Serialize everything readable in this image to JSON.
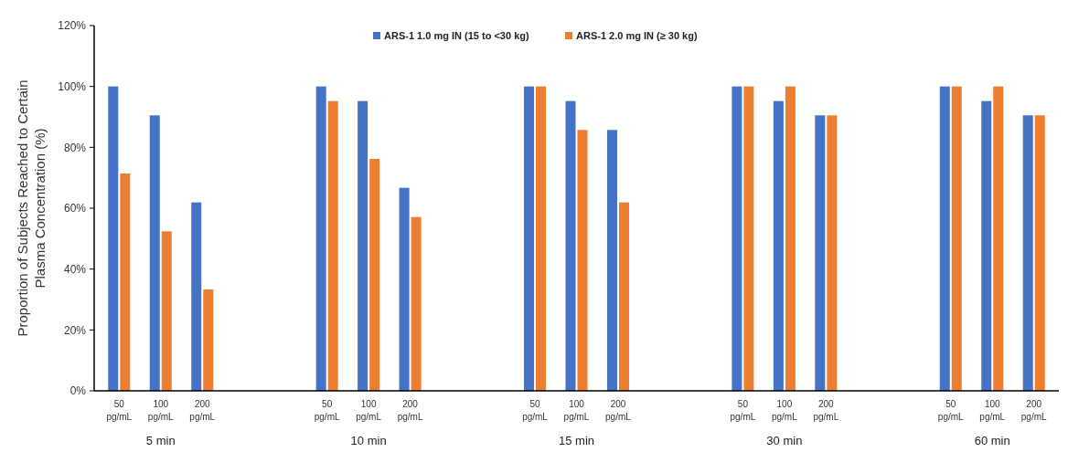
{
  "chart_data": {
    "type": "bar",
    "ylabel": "Proportion of Subjects Reached to Certain\nPlasma  Concentration (%)",
    "categories": [
      "50 pg/mL",
      "100 pg/mL",
      "200 pg/mL",
      null,
      null,
      "50 pg/mL",
      "100 pg/mL",
      "200 pg/mL",
      null,
      null,
      "50 pg/mL",
      "100 pg/mL",
      "200 pg/mL",
      null,
      null,
      "50 pg/mL",
      "100 pg/mL",
      "200 pg/mL",
      null,
      null,
      "50 pg/mL",
      "100 pg/mL",
      "200 pg/mL"
    ],
    "series": [
      {
        "name": "ARS-1 1.0 mg IN (15 to <30 kg)",
        "color": "#4472c4",
        "values": [
          100,
          90.5,
          61.9,
          null,
          null,
          100,
          95.2,
          66.7,
          null,
          null,
          100,
          95.2,
          85.7,
          null,
          null,
          100,
          95.2,
          90.5,
          null,
          null,
          100,
          95.2,
          90.5
        ]
      },
      {
        "name": "ARS-1 2.0 mg IN (≥ 30 kg)",
        "color": "#ed7d31",
        "values": [
          71.4,
          52.4,
          33.3,
          null,
          null,
          95.2,
          76.2,
          57.1,
          null,
          null,
          100,
          85.7,
          61.9,
          null,
          null,
          100,
          100,
          90.5,
          null,
          null,
          100,
          100,
          90.5
        ]
      }
    ],
    "annotations": [
      "5 min",
      "10 min",
      "15 min",
      "30 min",
      "60 min"
    ],
    "ylim": [
      0,
      120
    ],
    "yticks": [
      {
        "value": 0,
        "label": "0%"
      },
      {
        "value": 20,
        "label": "20%"
      },
      {
        "value": 40,
        "label": "40%"
      },
      {
        "value": 60,
        "label": "60%"
      },
      {
        "value": 80,
        "label": "80%"
      },
      {
        "value": 100,
        "label": "100%"
      },
      {
        "value": 120,
        "label": "120%"
      }
    ],
    "grid": false,
    "legend": "top"
  }
}
